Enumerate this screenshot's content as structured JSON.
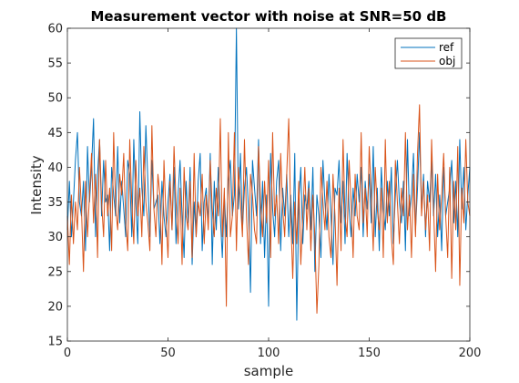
{
  "chart_data": {
    "type": "line",
    "title": "Measurement vector with noise at SNR=50 dB",
    "xlabel": "sample",
    "ylabel": "Intensity",
    "xlim": [
      0,
      200
    ],
    "ylim": [
      15,
      60
    ],
    "xticks": [
      0,
      50,
      100,
      150,
      200
    ],
    "yticks": [
      15,
      20,
      25,
      30,
      35,
      40,
      45,
      50,
      55,
      60
    ],
    "xtick_labels": [
      "0",
      "50",
      "100",
      "150",
      "200"
    ],
    "ytick_labels": [
      "15",
      "20",
      "25",
      "30",
      "35",
      "40",
      "45",
      "50",
      "55",
      "60"
    ],
    "grid": false,
    "legend_position": "top-right",
    "series": [
      {
        "name": "ref",
        "color": "#0072BD",
        "x": [
          0,
          1,
          2,
          3,
          4,
          5,
          6,
          7,
          8,
          9,
          10,
          11,
          12,
          13,
          14,
          15,
          16,
          17,
          18,
          19,
          20,
          21,
          22,
          23,
          24,
          25,
          26,
          27,
          28,
          29,
          30,
          31,
          32,
          33,
          34,
          35,
          36,
          37,
          38,
          39,
          40,
          41,
          42,
          43,
          44,
          45,
          46,
          47,
          48,
          49,
          50,
          51,
          52,
          53,
          54,
          55,
          56,
          57,
          58,
          59,
          60,
          61,
          62,
          63,
          64,
          65,
          66,
          67,
          68,
          69,
          70,
          71,
          72,
          73,
          74,
          75,
          76,
          77,
          78,
          79,
          80,
          81,
          82,
          83,
          84,
          85,
          86,
          87,
          88,
          89,
          90,
          91,
          92,
          93,
          94,
          95,
          96,
          97,
          98,
          99,
          100,
          101,
          102,
          103,
          104,
          105,
          106,
          107,
          108,
          109,
          110,
          111,
          112,
          113,
          114,
          115,
          116,
          117,
          118,
          119,
          120,
          121,
          122,
          123,
          124,
          125,
          126,
          127,
          128,
          129,
          130,
          131,
          132,
          133,
          134,
          135,
          136,
          137,
          138,
          139,
          140,
          141,
          142,
          143,
          144,
          145,
          146,
          147,
          148,
          149,
          150,
          151,
          152,
          153,
          154,
          155,
          156,
          157,
          158,
          159,
          160,
          161,
          162,
          163,
          164,
          165,
          166,
          167,
          168,
          169,
          170,
          171,
          172,
          173,
          174,
          175,
          176,
          177,
          178,
          179,
          180,
          181,
          182,
          183,
          184,
          185,
          186,
          187,
          188,
          189,
          190,
          191,
          192,
          193,
          194,
          195,
          196,
          197,
          198,
          199,
          200
        ],
        "values": [
          31,
          38,
          30,
          35,
          41,
          45,
          35,
          33,
          38,
          28,
          43,
          35,
          40,
          47,
          30,
          39,
          44,
          33,
          41,
          35,
          36,
          28,
          40,
          36,
          33,
          43,
          32,
          38,
          34,
          30,
          41,
          39,
          30,
          44,
          35,
          29,
          48,
          37,
          33,
          46,
          38,
          30,
          41,
          34,
          35,
          36,
          29,
          38,
          33,
          30,
          35,
          39,
          31,
          40,
          29,
          36,
          41,
          33,
          27,
          38,
          32,
          40,
          26,
          35,
          30,
          38,
          42,
          28,
          35,
          37,
          32,
          42,
          26,
          38,
          31,
          40,
          33,
          27,
          36,
          30,
          38,
          41,
          33,
          36,
          60,
          34,
          42,
          31,
          37,
          40,
          34,
          22,
          41,
          37,
          33,
          44,
          29,
          38,
          27,
          36,
          20,
          42,
          34,
          30,
          38,
          41,
          28,
          37,
          33,
          39,
          30,
          36,
          29,
          42,
          18,
          35,
          40,
          29,
          36,
          34,
          38,
          31,
          40,
          25,
          36,
          33,
          27,
          41,
          35,
          31,
          39,
          33,
          26,
          37,
          36,
          41,
          32,
          38,
          29,
          42,
          34,
          30,
          37,
          33,
          39,
          35,
          40,
          30,
          38,
          34,
          39,
          32,
          43,
          30,
          37,
          28,
          40,
          34,
          31,
          38,
          33,
          40,
          29,
          36,
          41,
          35,
          32,
          38,
          28,
          44,
          33,
          36,
          42,
          31,
          37,
          45,
          34,
          39,
          30,
          38,
          35,
          41,
          33,
          39,
          30,
          36,
          28,
          40,
          33,
          35,
          37,
          41,
          32,
          38,
          30,
          44,
          34,
          40,
          31,
          36,
          40
        ]
      },
      {
        "name": "obj",
        "color": "#D95319",
        "x": [
          0,
          1,
          2,
          3,
          4,
          5,
          6,
          7,
          8,
          9,
          10,
          11,
          12,
          13,
          14,
          15,
          16,
          17,
          18,
          19,
          20,
          21,
          22,
          23,
          24,
          25,
          26,
          27,
          28,
          29,
          30,
          31,
          32,
          33,
          34,
          35,
          36,
          37,
          38,
          39,
          40,
          41,
          42,
          43,
          44,
          45,
          46,
          47,
          48,
          49,
          50,
          51,
          52,
          53,
          54,
          55,
          56,
          57,
          58,
          59,
          60,
          61,
          62,
          63,
          64,
          65,
          66,
          67,
          68,
          69,
          70,
          71,
          72,
          73,
          74,
          75,
          76,
          77,
          78,
          79,
          80,
          81,
          82,
          83,
          84,
          85,
          86,
          87,
          88,
          89,
          90,
          91,
          92,
          93,
          94,
          95,
          96,
          97,
          98,
          99,
          100,
          101,
          102,
          103,
          104,
          105,
          106,
          107,
          108,
          109,
          110,
          111,
          112,
          113,
          114,
          115,
          116,
          117,
          118,
          119,
          120,
          121,
          122,
          123,
          124,
          125,
          126,
          127,
          128,
          129,
          130,
          131,
          132,
          133,
          134,
          135,
          136,
          137,
          138,
          139,
          140,
          141,
          142,
          143,
          144,
          145,
          146,
          147,
          148,
          149,
          150,
          151,
          152,
          153,
          154,
          155,
          156,
          157,
          158,
          159,
          160,
          161,
          162,
          163,
          164,
          165,
          166,
          167,
          168,
          169,
          170,
          171,
          172,
          173,
          174,
          175,
          176,
          177,
          178,
          179,
          180,
          181,
          182,
          183,
          184,
          185,
          186,
          187,
          188,
          189,
          190,
          191,
          192,
          193,
          194,
          195,
          196,
          197,
          198,
          199,
          200
        ],
        "values": [
          33,
          26,
          36,
          29,
          35,
          31,
          40,
          34,
          25,
          38,
          30,
          36,
          42,
          32,
          39,
          27,
          44,
          35,
          30,
          41,
          33,
          37,
          28,
          45,
          34,
          31,
          39,
          36,
          42,
          32,
          28,
          44,
          35,
          29,
          41,
          33,
          37,
          30,
          43,
          35,
          32,
          28,
          46,
          34,
          30,
          39,
          36,
          26,
          41,
          33,
          27,
          38,
          31,
          43,
          35,
          29,
          37,
          26,
          40,
          33,
          31,
          38,
          27,
          42,
          30,
          35,
          33,
          39,
          29,
          36,
          31,
          41,
          34,
          30,
          37,
          33,
          47,
          30,
          37,
          20,
          45,
          30,
          33,
          45,
          28,
          40,
          35,
          30,
          44,
          33,
          26,
          39,
          36,
          31,
          29,
          43,
          35,
          30,
          38,
          32,
          41,
          27,
          45,
          33,
          36,
          29,
          42,
          34,
          30,
          39,
          47,
          33,
          24,
          35,
          29,
          38,
          26,
          33,
          40,
          31,
          37,
          28,
          36,
          30,
          19,
          26,
          40,
          35,
          31,
          38,
          30,
          27,
          39,
          33,
          23,
          37,
          28,
          44,
          33,
          30,
          41,
          35,
          27,
          39,
          33,
          31,
          45,
          32,
          37,
          30,
          43,
          36,
          28,
          40,
          34,
          31,
          37,
          27,
          44,
          32,
          38,
          30,
          26,
          41,
          35,
          29,
          37,
          33,
          45,
          31,
          36,
          27,
          39,
          30,
          42,
          49,
          33,
          38,
          31,
          36,
          28,
          44,
          34,
          25,
          39,
          31,
          36,
          42,
          33,
          27,
          40,
          24,
          38,
          31,
          43,
          23,
          37,
          32,
          44,
          35,
          33
        ]
      }
    ]
  }
}
